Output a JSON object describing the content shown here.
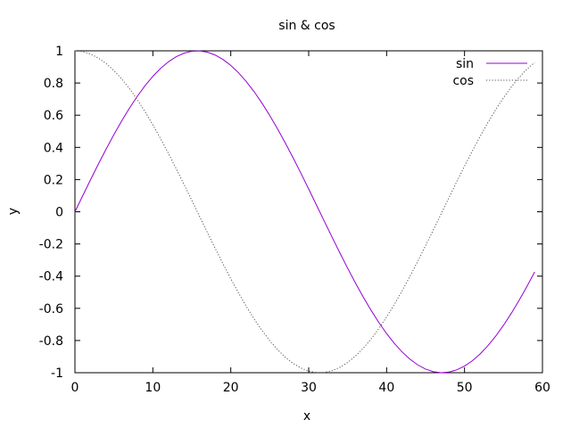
{
  "chart_data": {
    "type": "line",
    "title": "sin & cos",
    "xlabel": "x",
    "ylabel": "y",
    "xlim": [
      0,
      60
    ],
    "ylim": [
      -1,
      1
    ],
    "x_ticks": [
      "0",
      "10",
      "20",
      "30",
      "40",
      "50",
      "60"
    ],
    "y_ticks": [
      "-1",
      "-0.8",
      "-0.6",
      "-0.4",
      "-0.2",
      "0",
      "0.2",
      "0.4",
      "0.6",
      "0.8",
      "1"
    ],
    "grid": false,
    "legend_position": "top-right",
    "x": [
      0,
      1,
      2,
      3,
      4,
      5,
      6,
      7,
      8,
      9,
      10,
      11,
      12,
      13,
      14,
      15,
      16,
      17,
      18,
      19,
      20,
      21,
      22,
      23,
      24,
      25,
      26,
      27,
      28,
      29,
      30,
      31,
      32,
      33,
      34,
      35,
      36,
      37,
      38,
      39,
      40,
      41,
      42,
      43,
      44,
      45,
      46,
      47,
      48,
      49,
      50,
      51,
      52,
      53,
      54,
      55,
      56,
      57,
      58,
      59
    ],
    "series": [
      {
        "name": "sin",
        "color": "#9400d3",
        "style": "solid",
        "values": [
          0.0,
          0.0998,
          0.1987,
          0.2955,
          0.3894,
          0.4794,
          0.5646,
          0.6442,
          0.7174,
          0.7833,
          0.8415,
          0.8912,
          0.932,
          0.9636,
          0.9854,
          0.9975,
          0.9996,
          0.9917,
          0.9738,
          0.9463,
          0.9093,
          0.8632,
          0.8085,
          0.7457,
          0.6755,
          0.5985,
          0.5155,
          0.4274,
          0.335,
          0.2392,
          0.1411,
          0.0416,
          -0.0584,
          -0.1577,
          -0.2555,
          -0.3508,
          -0.4425,
          -0.5298,
          -0.6119,
          -0.6878,
          -0.7568,
          -0.8183,
          -0.8716,
          -0.9162,
          -0.9516,
          -0.9775,
          -0.9937,
          -0.9999,
          -0.9962,
          -0.9825,
          -0.9589,
          -0.9258,
          -0.8835,
          -0.8323,
          -0.7728,
          -0.7055,
          -0.6313,
          -0.5507,
          -0.4646,
          -0.3739
        ]
      },
      {
        "name": "cos",
        "color": "#555555",
        "style": "dotted",
        "values": [
          1.0,
          0.995,
          0.9801,
          0.9553,
          0.9211,
          0.8776,
          0.8253,
          0.7648,
          0.6967,
          0.6216,
          0.5403,
          0.4536,
          0.3624,
          0.2675,
          0.17,
          0.0707,
          -0.0292,
          -0.1288,
          -0.2272,
          -0.3233,
          -0.4161,
          -0.5048,
          -0.5885,
          -0.6663,
          -0.7374,
          -0.8011,
          -0.8569,
          -0.9041,
          -0.9422,
          -0.971,
          -0.99,
          -0.9991,
          -0.9983,
          -0.9875,
          -0.9668,
          -0.9365,
          -0.8968,
          -0.8481,
          -0.791,
          -0.7259,
          -0.6536,
          -0.5748,
          -0.4903,
          -0.4008,
          -0.3073,
          -0.2108,
          -0.1122,
          -0.0124,
          0.0875,
          0.1865,
          0.2837,
          0.378,
          0.4685,
          0.5544,
          0.6347,
          0.7087,
          0.7756,
          0.8347,
          0.8855,
          0.9275
        ]
      }
    ]
  }
}
